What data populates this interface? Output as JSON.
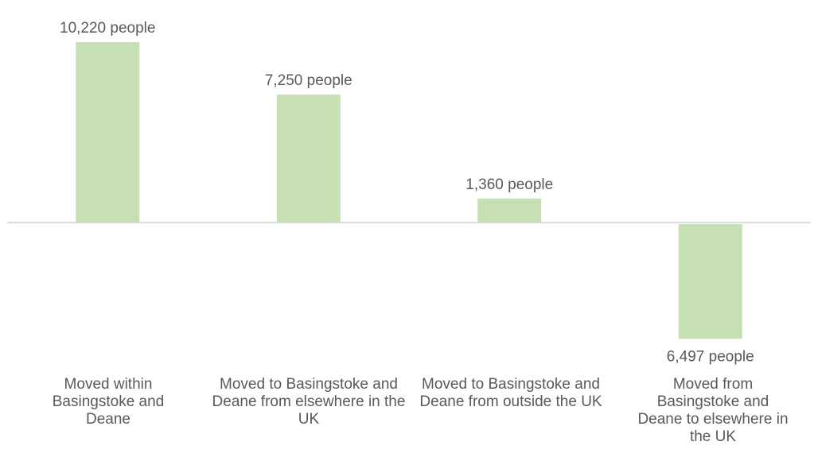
{
  "chart_data": {
    "type": "bar",
    "categories": [
      "Moved within Basingstoke and Deane",
      "Moved to Basingstoke and Deane from elsewhere in the UK",
      "Moved to Basingstoke and Deane from outside the UK",
      "Moved from Basingstoke and Deane to elsewhere in the UK"
    ],
    "values": [
      10220,
      7250,
      1360,
      -6497
    ],
    "data_labels": [
      "10,220 people",
      "7,250 people",
      "1,360 people",
      "6,497 people"
    ],
    "title": "",
    "xlabel": "",
    "ylabel": "",
    "ylim": [
      -7000,
      10600
    ],
    "grid": false,
    "legend": "none",
    "colors": {
      "bar": "#c6e0b4",
      "axis": "#d0d0d0",
      "text": "#595959"
    }
  }
}
